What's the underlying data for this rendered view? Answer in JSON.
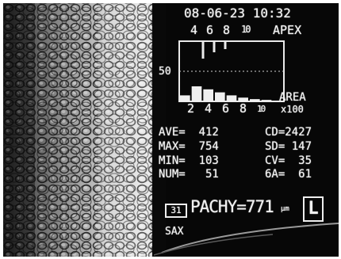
{
  "datetime": "08-06-23 10:32",
  "histogram": {
    "apex_ticks": [
      "4",
      "6",
      "8",
      "10"
    ],
    "apex_label": "APEX",
    "y_marker": "50",
    "area_ticks": [
      "2",
      "4",
      "6",
      "8",
      "10"
    ],
    "area_label": "AREA",
    "area_unit": "x100",
    "chart_data": {
      "type": "bar",
      "x": [
        1.5,
        2.5,
        3.5,
        4.5,
        5.5,
        6.5,
        7.5,
        8.5,
        9.5
      ],
      "values": [
        8,
        20,
        16,
        12,
        8,
        5,
        3,
        2,
        1
      ],
      "ylim": [
        0,
        80
      ]
    }
  },
  "stats": {
    "ave": "AVE=  412",
    "max": "MAX=  754",
    "min": "MIN=  103",
    "num": "NUM=   51",
    "cd": "CD=2427",
    "sd": "SD= 147",
    "cv": "CV=  35",
    "ga": "6A=  61"
  },
  "pachy": {
    "index": "31",
    "label": "PACHY=771",
    "unit": "μm",
    "side": "L"
  },
  "footer": "SAX",
  "colors": {
    "background": "#070707",
    "text": "#f1f1f1"
  }
}
